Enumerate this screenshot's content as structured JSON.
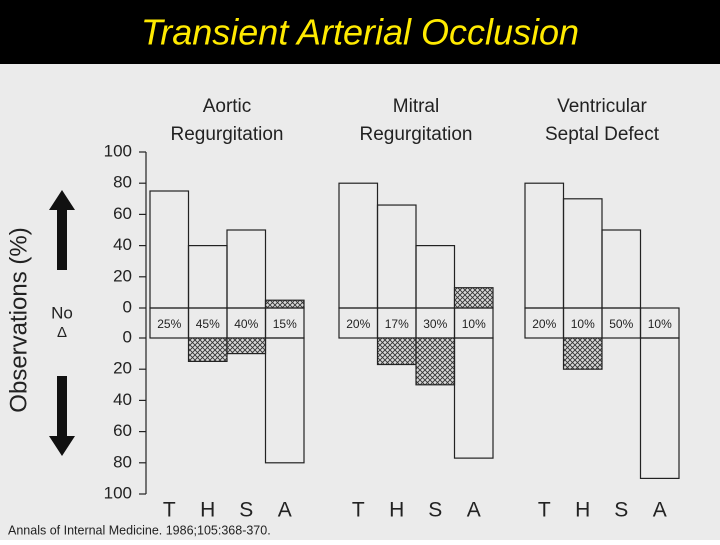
{
  "chart_data": {
    "type": "bar",
    "title": "Transient Arterial Occlusion",
    "ylabel": "Observations (%)",
    "no_change_label": [
      "No",
      "Δ"
    ],
    "ylim_up": [
      0,
      100
    ],
    "yticks_up": [
      0,
      20,
      40,
      60,
      80,
      100
    ],
    "ylim_down": [
      0,
      100
    ],
    "yticks_down": [
      0,
      20,
      40,
      60,
      80,
      100
    ],
    "source": "Annals of Internal Medicine. 1986;105:368-370.",
    "panels": [
      {
        "title": [
          "Aortic",
          "Regurgitation"
        ],
        "categories": [
          "T",
          "H",
          "S",
          "A"
        ],
        "increase": [
          75,
          40,
          50,
          5
        ],
        "increase_hatched": [
          false,
          false,
          false,
          true
        ],
        "no_change": [
          25,
          45,
          40,
          15
        ],
        "no_change_labels": [
          "25%",
          "45%",
          "40%",
          "15%"
        ],
        "decrease": [
          0,
          15,
          10,
          80
        ],
        "decrease_hatched": [
          false,
          true,
          true,
          false
        ]
      },
      {
        "title": [
          "Mitral",
          "Regurgitation"
        ],
        "categories": [
          "T",
          "H",
          "S",
          "A"
        ],
        "increase": [
          80,
          66,
          40,
          13
        ],
        "increase_hatched": [
          false,
          false,
          false,
          true
        ],
        "no_change": [
          20,
          17,
          30,
          10
        ],
        "no_change_labels": [
          "20%",
          "17%",
          "30%",
          "10%"
        ],
        "decrease": [
          0,
          17,
          30,
          77
        ],
        "decrease_hatched": [
          false,
          true,
          true,
          false
        ]
      },
      {
        "title": [
          "Ventricular",
          "Septal Defect"
        ],
        "categories": [
          "T",
          "H",
          "S",
          "A"
        ],
        "increase": [
          80,
          70,
          50,
          0
        ],
        "increase_hatched": [
          false,
          false,
          false,
          true
        ],
        "no_change": [
          20,
          10,
          50,
          10
        ],
        "no_change_labels": [
          "20%",
          "10%",
          "50%",
          "10%"
        ],
        "decrease": [
          0,
          20,
          0,
          90
        ],
        "decrease_hatched": [
          false,
          true,
          false,
          false
        ]
      }
    ]
  }
}
